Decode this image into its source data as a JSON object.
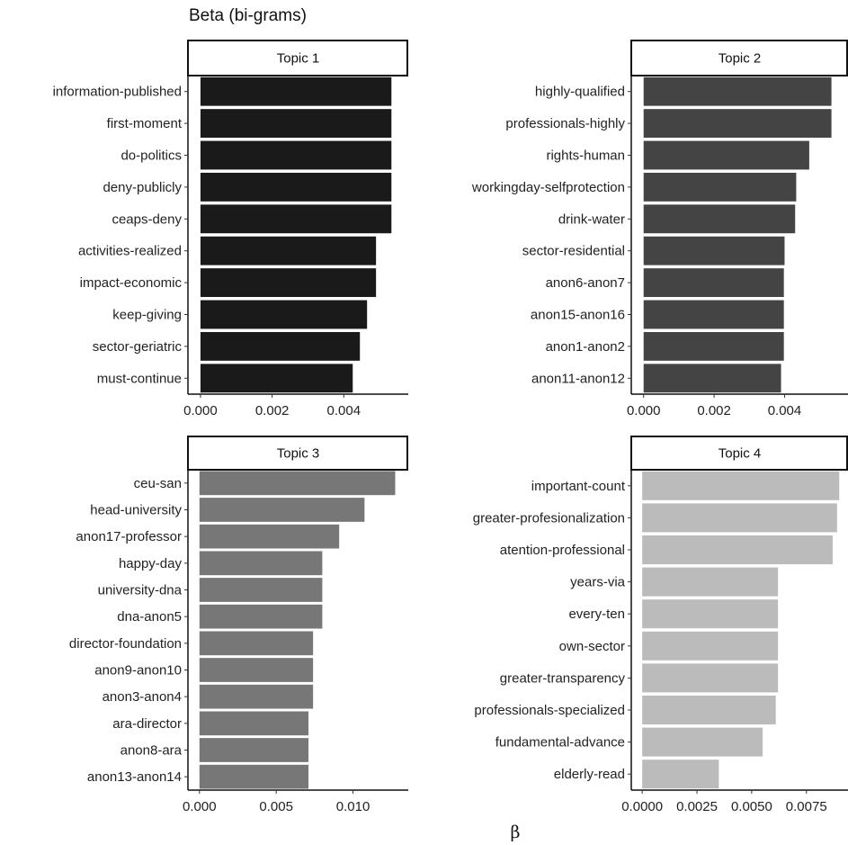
{
  "chart_data": {
    "type": "bar",
    "orientation": "horizontal",
    "title": "Beta (bi-grams)",
    "xlabel": "β",
    "panels": [
      {
        "name": "Topic 1",
        "color": "#1a1a1a",
        "xlim": [
          -0.00035,
          0.0058
        ],
        "xticks": [
          "0.000",
          "0.002",
          "0.004"
        ],
        "xtick_values": [
          0,
          0.002,
          0.004
        ],
        "categories": [
          "information-published",
          "first-moment",
          "do-politics",
          "deny-publicly",
          "ceaps-deny",
          "activities-realized",
          "impact-economic",
          "keep-giving",
          "sector-geriatric",
          "must-continue"
        ],
        "values": [
          0.00533,
          0.00533,
          0.00533,
          0.00533,
          0.00533,
          0.0049,
          0.0049,
          0.00465,
          0.00445,
          0.00425
        ]
      },
      {
        "name": "Topic 2",
        "color": "#444444",
        "xlim": [
          -0.00035,
          0.0058
        ],
        "xticks": [
          "0.000",
          "0.002",
          "0.004"
        ],
        "xtick_values": [
          0,
          0.002,
          0.004
        ],
        "categories": [
          "highly-qualified",
          "professionals-highly",
          "rights-human",
          "workingday-selfprotection",
          "drink-water",
          "sector-residential",
          "anon6-anon7",
          "anon15-anon16",
          "anon1-anon2",
          "anon11-anon12"
        ],
        "values": [
          0.00533,
          0.00533,
          0.0047,
          0.00433,
          0.0043,
          0.004,
          0.00398,
          0.00398,
          0.00398,
          0.0039
        ]
      },
      {
        "name": "Topic 3",
        "color": "#777777",
        "xlim": [
          -0.00075,
          0.0136
        ],
        "xticks": [
          "0.000",
          "0.005",
          "0.010"
        ],
        "xtick_values": [
          0,
          0.005,
          0.01
        ],
        "categories": [
          "ceu-san",
          "head-university",
          "anon17-professor",
          "happy-day",
          "university-dna",
          "dna-anon5",
          "director-foundation",
          "anon9-anon10",
          "anon3-anon4",
          "ara-director",
          "anon8-ara",
          "anon13-anon14"
        ],
        "values": [
          0.01275,
          0.01075,
          0.0091,
          0.008,
          0.008,
          0.008,
          0.0074,
          0.0074,
          0.0074,
          0.0071,
          0.0071,
          0.0071
        ]
      },
      {
        "name": "Topic 4",
        "color": "#bbbbbb",
        "xlim": [
          -0.0005,
          0.0094
        ],
        "xticks": [
          "0.0000",
          "0.0025",
          "0.0050",
          "0.0075"
        ],
        "xtick_values": [
          0,
          0.0025,
          0.005,
          0.0075
        ],
        "categories": [
          "important-count",
          "greater-profesionalization",
          "atention-professional",
          "years-via",
          "every-ten",
          "own-sector",
          "greater-transparency",
          "professionals-specialized",
          "fundamental-advance",
          "elderly-read"
        ],
        "values": [
          0.009,
          0.0089,
          0.0087,
          0.0062,
          0.0062,
          0.0062,
          0.0062,
          0.0061,
          0.0055,
          0.0035
        ]
      }
    ]
  }
}
